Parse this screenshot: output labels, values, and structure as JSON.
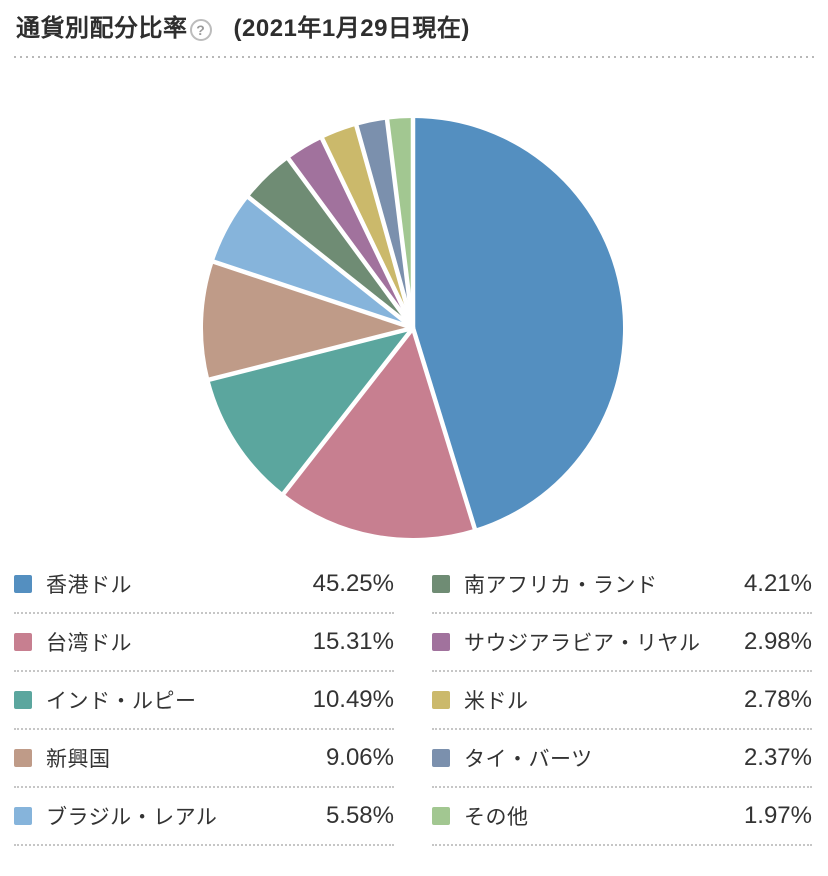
{
  "header": {
    "title": "通貨別配分比率",
    "help_glyph": "?",
    "date_note": "(2021年1月29日現在)"
  },
  "chart_data": {
    "type": "pie",
    "title": "通貨別配分比率",
    "as_of_label": "(2021年1月29日現在)",
    "start_angle": "12-oclock",
    "direction": "clockwise",
    "legend_position": "bottom-two-columns",
    "slice_gap_color": "#ffffff",
    "slices": [
      {
        "label": "香港ドル",
        "value": 45.25,
        "display": "45.25%",
        "color": "#548FC0"
      },
      {
        "label": "台湾ドル",
        "value": 15.31,
        "display": "15.31%",
        "color": "#C77F90"
      },
      {
        "label": "インド・ルピー",
        "value": 10.49,
        "display": "10.49%",
        "color": "#5BA69E"
      },
      {
        "label": "新興国",
        "value": 9.06,
        "display": "9.06%",
        "color": "#BF9B88"
      },
      {
        "label": "ブラジル・レアル",
        "value": 5.58,
        "display": "5.58%",
        "color": "#86B4DB"
      },
      {
        "label": "南アフリカ・ランド",
        "value": 4.21,
        "display": "4.21%",
        "color": "#6F8C74"
      },
      {
        "label": "サウジアラビア・リヤル",
        "value": 2.98,
        "display": "2.98%",
        "color": "#A1729D"
      },
      {
        "label": "米ドル",
        "value": 2.78,
        "display": "2.78%",
        "color": "#CBB96B"
      },
      {
        "label": "タイ・バーツ",
        "value": 2.37,
        "display": "2.37%",
        "color": "#7B90AD"
      },
      {
        "label": "その他",
        "value": 1.97,
        "display": "1.97%",
        "color": "#A2C791"
      }
    ]
  }
}
